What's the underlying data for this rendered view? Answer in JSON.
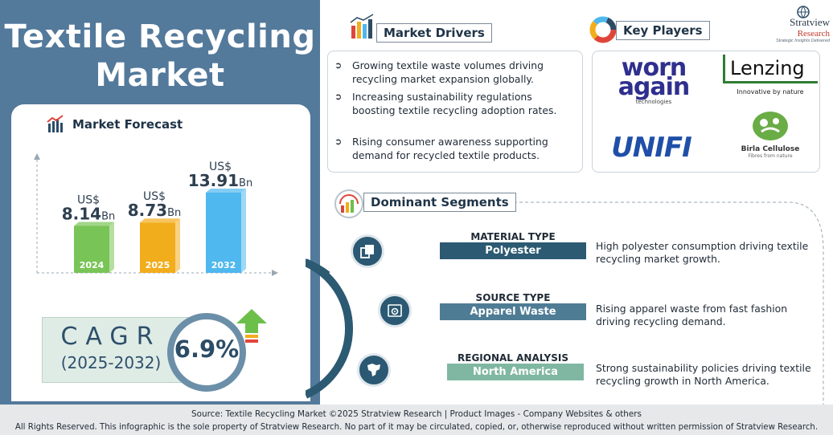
{
  "title_line1": "Textile Recycling",
  "title_line2": "Market",
  "forecast": {
    "heading": "Market Forecast",
    "currency_prefix": "US$",
    "unit_suffix": "Bn"
  },
  "chart_data": {
    "type": "bar",
    "categories": [
      "2024",
      "2025",
      "2032"
    ],
    "values": [
      8.14,
      8.73,
      13.91
    ],
    "value_labels": [
      "8.14",
      "8.73",
      "13.91"
    ],
    "colors": [
      "#79c456",
      "#f2ad1c",
      "#4fb8ee"
    ],
    "title": "Market Forecast",
    "xlabel": "",
    "ylabel": "",
    "grid": false
  },
  "cagr": {
    "label": "CAGR",
    "range": "(2025-2032)",
    "value": "6.9%"
  },
  "brand": {
    "name": "Stratview",
    "sub": "Research",
    "tagline": "Strategic Insights Delivered"
  },
  "drivers": {
    "heading": "Market Drivers",
    "items": [
      "Growing textile waste volumes driving recycling market expansion globally.",
      "Increasing sustainability regulations boosting textile recycling adoption rates.",
      "Rising consumer awareness supporting demand for recycled textile products."
    ]
  },
  "players": {
    "heading": "Key Players",
    "logos": {
      "wornagain_1": "worn",
      "wornagain_2": "again",
      "wornagain_3": "technologies",
      "lenzing": "Lenzing",
      "lenzing_tag": "Innovative by nature",
      "unifi": "UNIFI",
      "birla": "Birla Cellulose",
      "birla_tag": "Fibres from nature"
    }
  },
  "segments": {
    "heading": "Dominant Segments",
    "items": [
      {
        "category": "MATERIAL TYPE",
        "value": "Polyester",
        "desc": "High polyester consumption driving textile recycling market growth.",
        "color": "#2c5a72"
      },
      {
        "category": "SOURCE TYPE",
        "value": "Apparel Waste",
        "desc": "Rising apparel waste from fast fashion driving recycling demand.",
        "color": "#4e7c95"
      },
      {
        "category": "REGIONAL ANALYSIS",
        "value": "North America",
        "desc": "Strong sustainability policies driving textile recycling growth in North America.",
        "color": "#7fb7a2"
      }
    ]
  },
  "footer": {
    "source": "Source:  Textile Recycling Market  ©2025 Stratview Research | Product Images  - Company Websites & others",
    "rights": "All Rights Reserved. This infographic is the sole property of Stratview Research. No part of it may be circulated, copied, or, otherwise reproduced without written permission of Stratview Research."
  }
}
